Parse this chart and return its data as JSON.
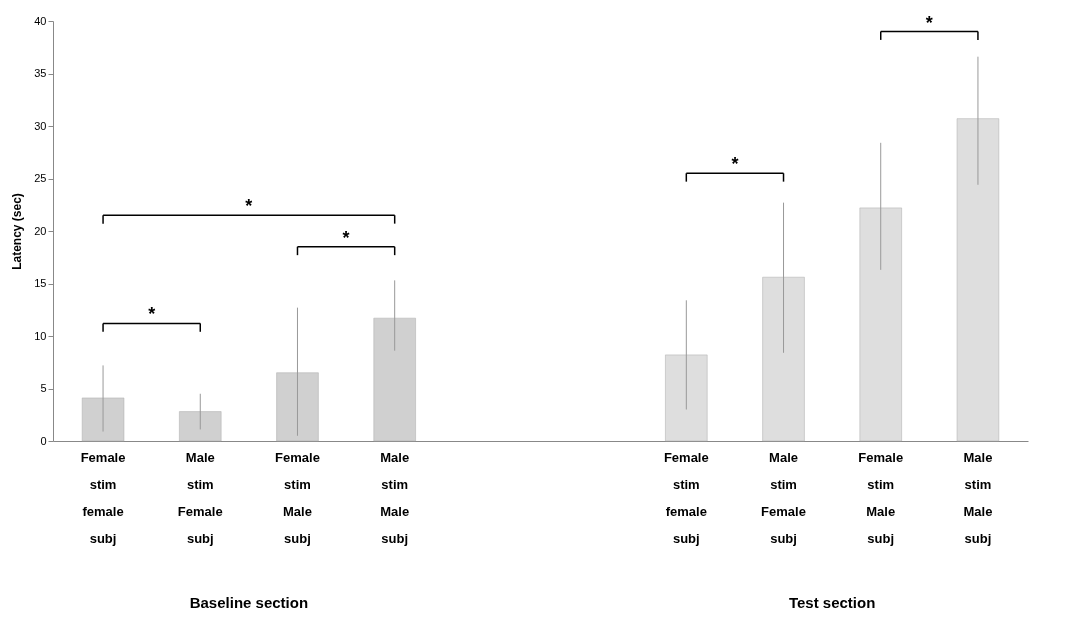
{
  "chart_data": {
    "type": "bar",
    "ylabel": "Latency (sec)",
    "categories": [
      "Female stim female subj",
      "Male stim Female subj",
      "Female stim Male subj",
      "Male stim Male subj",
      null,
      null,
      "Female stim female subj",
      "Male stim Female subj",
      "Female stim Male subj",
      "Male stim Male subj"
    ],
    "values": [
      4.1,
      2.8,
      6.5,
      11.7,
      null,
      null,
      8.2,
      15.6,
      22.2,
      30.7
    ],
    "errors": [
      [
        0.9,
        7.2
      ],
      [
        1.1,
        4.5
      ],
      [
        0.5,
        12.7
      ],
      [
        8.6,
        15.3
      ],
      null,
      null,
      [
        3.0,
        13.4
      ],
      [
        8.4,
        22.7
      ],
      [
        16.3,
        28.4
      ],
      [
        24.4,
        36.6
      ]
    ],
    "colors": [
      "#d0d0d0",
      "#d0d0d0",
      "#d0d0d0",
      "#d0d0d0",
      null,
      null,
      "#dedede",
      "#dedede",
      "#dedede",
      "#dedede"
    ],
    "ylim": [
      0,
      40
    ],
    "yticks": [
      0,
      5,
      10,
      15,
      20,
      25,
      30,
      35,
      40
    ],
    "grid": false,
    "annotations": [
      "*",
      "*",
      "*",
      "*",
      "*",
      "Baseline section",
      "Test section"
    ]
  }
}
